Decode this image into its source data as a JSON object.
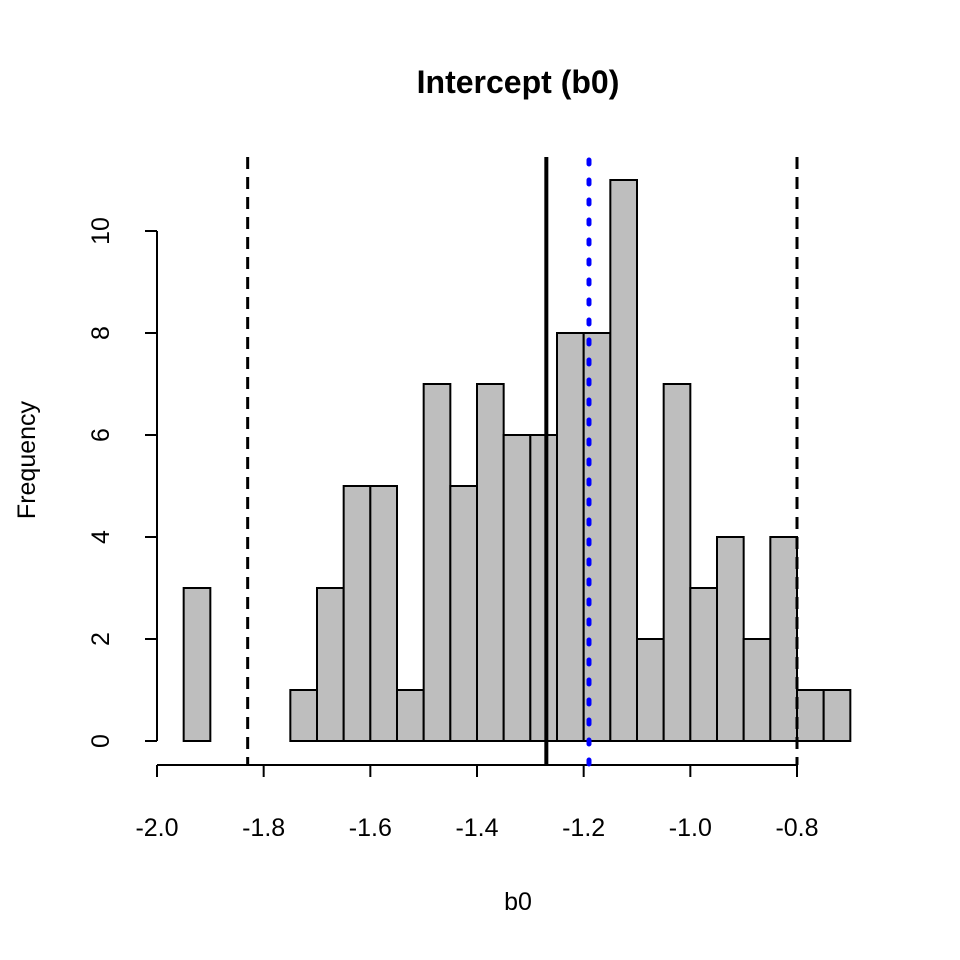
{
  "chart_data": {
    "type": "bar",
    "subtype": "histogram",
    "title": "Intercept (b0)",
    "xlabel": "b0",
    "ylabel": "Frequency",
    "bin_width": 0.05,
    "bin_start": -1.95,
    "values": [
      3,
      0,
      0,
      0,
      1,
      3,
      5,
      5,
      1,
      7,
      5,
      7,
      6,
      6,
      8,
      8,
      11,
      2,
      7,
      3,
      4,
      2,
      4,
      1,
      1
    ],
    "bar_color": "#BEBEBE",
    "xlim": [
      -2.0,
      -0.8
    ],
    "ylim": [
      0,
      11
    ],
    "xticks": [
      "-2.0",
      "-1.8",
      "-1.6",
      "-1.4",
      "-1.2",
      "-1.0",
      "-0.8"
    ],
    "xtick_values": [
      -2.0,
      -1.8,
      -1.6,
      -1.4,
      -1.2,
      -1.0,
      -0.8
    ],
    "yticks": [
      "0",
      "2",
      "4",
      "6",
      "8",
      "10"
    ],
    "ytick_values": [
      0,
      2,
      4,
      6,
      8,
      10
    ],
    "grid": false,
    "reference_lines": [
      {
        "name": "lower-interval-line",
        "x": -1.83,
        "style": "dashed",
        "color": "#000000"
      },
      {
        "name": "mean-line",
        "x": -1.27,
        "style": "solid",
        "color": "#000000"
      },
      {
        "name": "true-value-line",
        "x": -1.19,
        "style": "dotted",
        "color": "#0000FF"
      },
      {
        "name": "upper-interval-line",
        "x": -0.8,
        "style": "dashed",
        "color": "#000000"
      }
    ]
  }
}
